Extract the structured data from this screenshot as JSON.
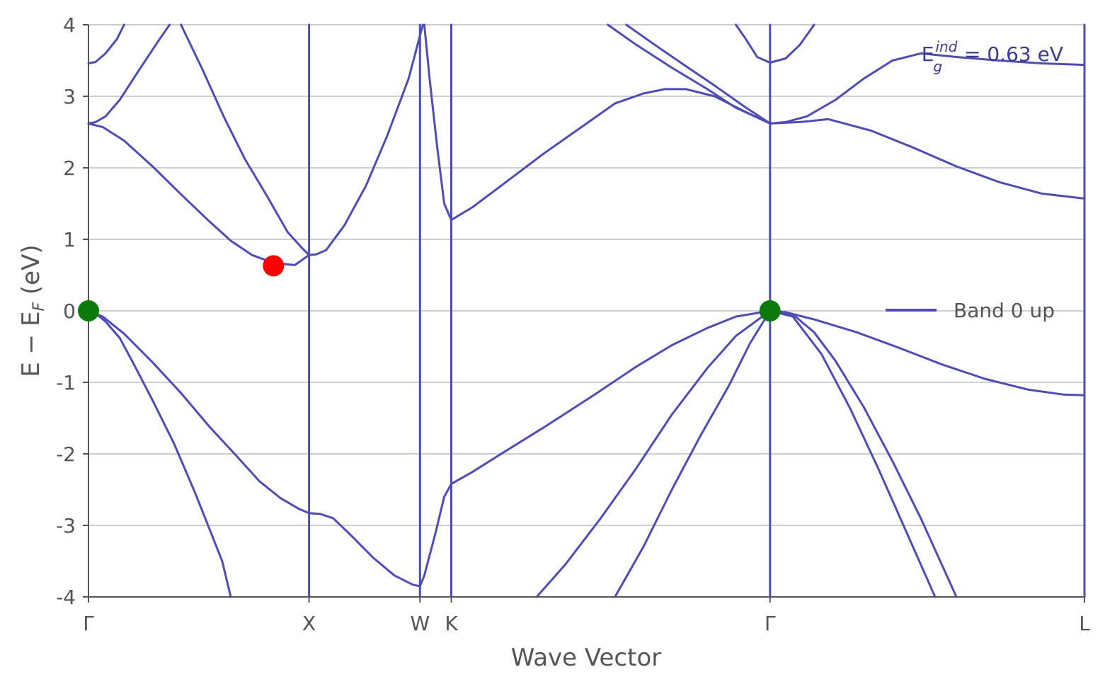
{
  "chart_data": {
    "type": "line",
    "title": "",
    "xlabel": "Wave Vector",
    "ylabel": {
      "main": "E − E",
      "sub": "F",
      "unit": " (eV)"
    },
    "ylim": [
      -4,
      4
    ],
    "xlim": [
      0,
      7.0
    ],
    "y_ticks": [
      4,
      3,
      2,
      1,
      0,
      -1,
      -2,
      -3,
      -4
    ],
    "x_ticks": [
      {
        "label": "Γ",
        "x": 0.0
      },
      {
        "label": "X",
        "x": 1.55
      },
      {
        "label": "W",
        "x": 2.33
      },
      {
        "label": "K",
        "x": 2.55
      },
      {
        "label": "Γ",
        "x": 4.79
      },
      {
        "label": "L",
        "x": 7.0
      }
    ],
    "grid": true,
    "legend": {
      "position": "right",
      "entries": [
        "Band 0 up"
      ]
    },
    "annotation": {
      "main": "E",
      "sub": "g",
      "sup": "ind",
      "text": " = 0.63 eV"
    },
    "line_color": "#4f4cb3",
    "markers": [
      {
        "name": "VBM",
        "x": 0.0,
        "y": 0.0,
        "color": "#0b7a0b"
      },
      {
        "name": "VBM",
        "x": 4.79,
        "y": 0.0,
        "color": "#0b7a0b"
      },
      {
        "name": "CBM",
        "x": 1.3,
        "y": 0.63,
        "color": "#ff0000"
      }
    ],
    "series": [
      {
        "name": "Band 0 up",
        "points": [
          [
            0.0,
            0.0
          ],
          [
            0.05,
            -0.04
          ],
          [
            0.12,
            -0.15
          ],
          [
            0.22,
            -0.38
          ],
          [
            0.32,
            -0.75
          ],
          [
            0.45,
            -1.25
          ],
          [
            0.6,
            -1.85
          ],
          [
            0.75,
            -2.55
          ],
          [
            0.86,
            -3.1
          ],
          [
            0.94,
            -3.5
          ],
          [
            1.0,
            -4.0
          ]
        ]
      },
      {
        "name": "Band 0 up",
        "points": [
          [
            0.0,
            0.0
          ],
          [
            0.1,
            -0.08
          ],
          [
            0.25,
            -0.32
          ],
          [
            0.45,
            -0.72
          ],
          [
            0.65,
            -1.15
          ],
          [
            0.85,
            -1.62
          ],
          [
            1.05,
            -2.05
          ],
          [
            1.2,
            -2.38
          ],
          [
            1.35,
            -2.62
          ],
          [
            1.48,
            -2.77
          ],
          [
            1.55,
            -2.83
          ],
          [
            1.63,
            -2.84
          ],
          [
            1.72,
            -2.9
          ],
          [
            1.85,
            -3.15
          ],
          [
            2.0,
            -3.45
          ],
          [
            2.15,
            -3.7
          ],
          [
            2.28,
            -3.83
          ],
          [
            2.33,
            -3.85
          ],
          [
            2.36,
            -3.7
          ],
          [
            2.44,
            -3.1
          ],
          [
            2.5,
            -2.6
          ],
          [
            2.55,
            -2.42
          ],
          [
            2.7,
            -2.25
          ],
          [
            2.9,
            -2.0
          ],
          [
            3.2,
            -1.63
          ],
          [
            3.55,
            -1.18
          ],
          [
            3.85,
            -0.78
          ],
          [
            4.1,
            -0.48
          ],
          [
            4.35,
            -0.24
          ],
          [
            4.55,
            -0.08
          ],
          [
            4.79,
            0.0
          ],
          [
            4.9,
            -0.02
          ],
          [
            5.1,
            -0.12
          ],
          [
            5.4,
            -0.3
          ],
          [
            5.7,
            -0.52
          ],
          [
            6.0,
            -0.75
          ],
          [
            6.3,
            -0.95
          ],
          [
            6.6,
            -1.1
          ],
          [
            6.85,
            -1.17
          ],
          [
            7.0,
            -1.18
          ]
        ]
      },
      {
        "name": "Band 0 up",
        "points": [
          [
            3.15,
            -4.0
          ],
          [
            3.35,
            -3.55
          ],
          [
            3.6,
            -2.9
          ],
          [
            3.85,
            -2.2
          ],
          [
            4.1,
            -1.45
          ],
          [
            4.35,
            -0.8
          ],
          [
            4.55,
            -0.35
          ],
          [
            4.79,
            0.0
          ],
          [
            4.95,
            -0.05
          ],
          [
            5.1,
            -0.3
          ],
          [
            5.25,
            -0.7
          ],
          [
            5.45,
            -1.35
          ],
          [
            5.65,
            -2.1
          ],
          [
            5.85,
            -2.9
          ],
          [
            6.1,
            -4.0
          ]
        ]
      },
      {
        "name": "Band 0 up",
        "points": [
          [
            3.7,
            -4.0
          ],
          [
            3.9,
            -3.3
          ],
          [
            4.1,
            -2.5
          ],
          [
            4.3,
            -1.75
          ],
          [
            4.5,
            -1.05
          ],
          [
            4.65,
            -0.45
          ],
          [
            4.79,
            0.0
          ],
          [
            4.95,
            -0.08
          ],
          [
            5.15,
            -0.6
          ],
          [
            5.35,
            -1.35
          ],
          [
            5.55,
            -2.2
          ],
          [
            5.75,
            -3.1
          ],
          [
            5.95,
            -4.0
          ]
        ]
      },
      {
        "name": "Band 0 up",
        "points": [
          [
            0.0,
            2.62
          ],
          [
            0.1,
            2.57
          ],
          [
            0.25,
            2.38
          ],
          [
            0.45,
            2.02
          ],
          [
            0.65,
            1.63
          ],
          [
            0.85,
            1.25
          ],
          [
            1.0,
            0.98
          ],
          [
            1.15,
            0.78
          ],
          [
            1.3,
            0.67
          ],
          [
            1.45,
            0.64
          ],
          [
            1.55,
            0.78
          ]
        ]
      },
      {
        "name": "Band 0 up",
        "points": [
          [
            0.0,
            3.46
          ],
          [
            0.05,
            3.48
          ],
          [
            0.12,
            3.6
          ],
          [
            0.2,
            3.8
          ],
          [
            0.25,
            4.0
          ]
        ]
      },
      {
        "name": "Band 0 up",
        "points": [
          [
            0.0,
            2.62
          ],
          [
            0.05,
            2.64
          ],
          [
            0.12,
            2.72
          ],
          [
            0.22,
            2.95
          ],
          [
            0.35,
            3.35
          ],
          [
            0.5,
            3.8
          ],
          [
            0.57,
            4.0
          ]
        ]
      },
      {
        "name": "Band 0 up",
        "points": [
          [
            0.65,
            4.0
          ],
          [
            0.8,
            3.38
          ],
          [
            0.95,
            2.72
          ],
          [
            1.1,
            2.12
          ],
          [
            1.25,
            1.62
          ],
          [
            1.4,
            1.1
          ],
          [
            1.5,
            0.88
          ],
          [
            1.55,
            0.78
          ],
          [
            1.6,
            0.79
          ],
          [
            1.67,
            0.85
          ],
          [
            1.8,
            1.2
          ],
          [
            1.95,
            1.75
          ],
          [
            2.1,
            2.45
          ],
          [
            2.25,
            3.25
          ],
          [
            2.33,
            3.85
          ],
          [
            2.35,
            4.0
          ]
        ]
      },
      {
        "name": "Band 0 up",
        "points": [
          [
            2.36,
            4.0
          ],
          [
            2.4,
            3.2
          ],
          [
            2.45,
            2.3
          ],
          [
            2.5,
            1.5
          ],
          [
            2.55,
            1.27
          ],
          [
            2.7,
            1.45
          ],
          [
            2.9,
            1.75
          ],
          [
            3.2,
            2.2
          ],
          [
            3.45,
            2.55
          ],
          [
            3.7,
            2.9
          ],
          [
            3.9,
            3.04
          ],
          [
            4.05,
            3.1
          ],
          [
            4.2,
            3.1
          ],
          [
            4.4,
            3.0
          ],
          [
            4.6,
            2.8
          ],
          [
            4.79,
            2.62
          ],
          [
            4.9,
            2.64
          ],
          [
            5.05,
            2.72
          ],
          [
            5.25,
            2.95
          ],
          [
            5.45,
            3.25
          ],
          [
            5.65,
            3.5
          ],
          [
            5.85,
            3.6
          ],
          [
            6.1,
            3.55
          ],
          [
            6.4,
            3.5
          ],
          [
            6.7,
            3.46
          ],
          [
            7.0,
            3.44
          ]
        ]
      },
      {
        "name": "Band 0 up",
        "points": [
          [
            3.65,
            4.0
          ],
          [
            3.85,
            3.72
          ],
          [
            4.1,
            3.4
          ],
          [
            4.35,
            3.1
          ],
          [
            4.55,
            2.84
          ],
          [
            4.79,
            2.62
          ],
          [
            5.0,
            2.64
          ],
          [
            5.2,
            2.68
          ],
          [
            5.5,
            2.52
          ],
          [
            5.8,
            2.28
          ],
          [
            6.1,
            2.02
          ],
          [
            6.4,
            1.8
          ],
          [
            6.7,
            1.64
          ],
          [
            7.0,
            1.57
          ]
        ]
      },
      {
        "name": "Band 0 up",
        "points": [
          [
            3.78,
            4.0
          ],
          [
            3.98,
            3.72
          ],
          [
            4.2,
            3.42
          ],
          [
            4.4,
            3.15
          ],
          [
            4.6,
            2.87
          ],
          [
            4.79,
            2.62
          ]
        ]
      },
      {
        "name": "Band 0 up",
        "points": [
          [
            4.55,
            4.0
          ],
          [
            4.62,
            3.8
          ],
          [
            4.7,
            3.55
          ],
          [
            4.79,
            3.47
          ],
          [
            4.9,
            3.53
          ],
          [
            5.0,
            3.72
          ],
          [
            5.1,
            4.0
          ]
        ]
      },
      {
        "name": "Band 0 up",
        "points": [
          [
            1.55,
            4.0
          ],
          [
            1.55,
            -4.0
          ]
        ]
      },
      {
        "name": "Band 0 up",
        "points": [
          [
            2.33,
            4.0
          ],
          [
            2.33,
            -4.0
          ]
        ]
      },
      {
        "name": "Band 0 up",
        "points": [
          [
            2.55,
            4.0
          ],
          [
            2.55,
            -4.0
          ]
        ]
      },
      {
        "name": "Band 0 up",
        "points": [
          [
            4.79,
            4.0
          ],
          [
            4.79,
            -4.0
          ]
        ]
      },
      {
        "name": "Band 0 up",
        "points": [
          [
            7.0,
            4.0
          ],
          [
            7.0,
            -4.0
          ]
        ]
      }
    ]
  }
}
